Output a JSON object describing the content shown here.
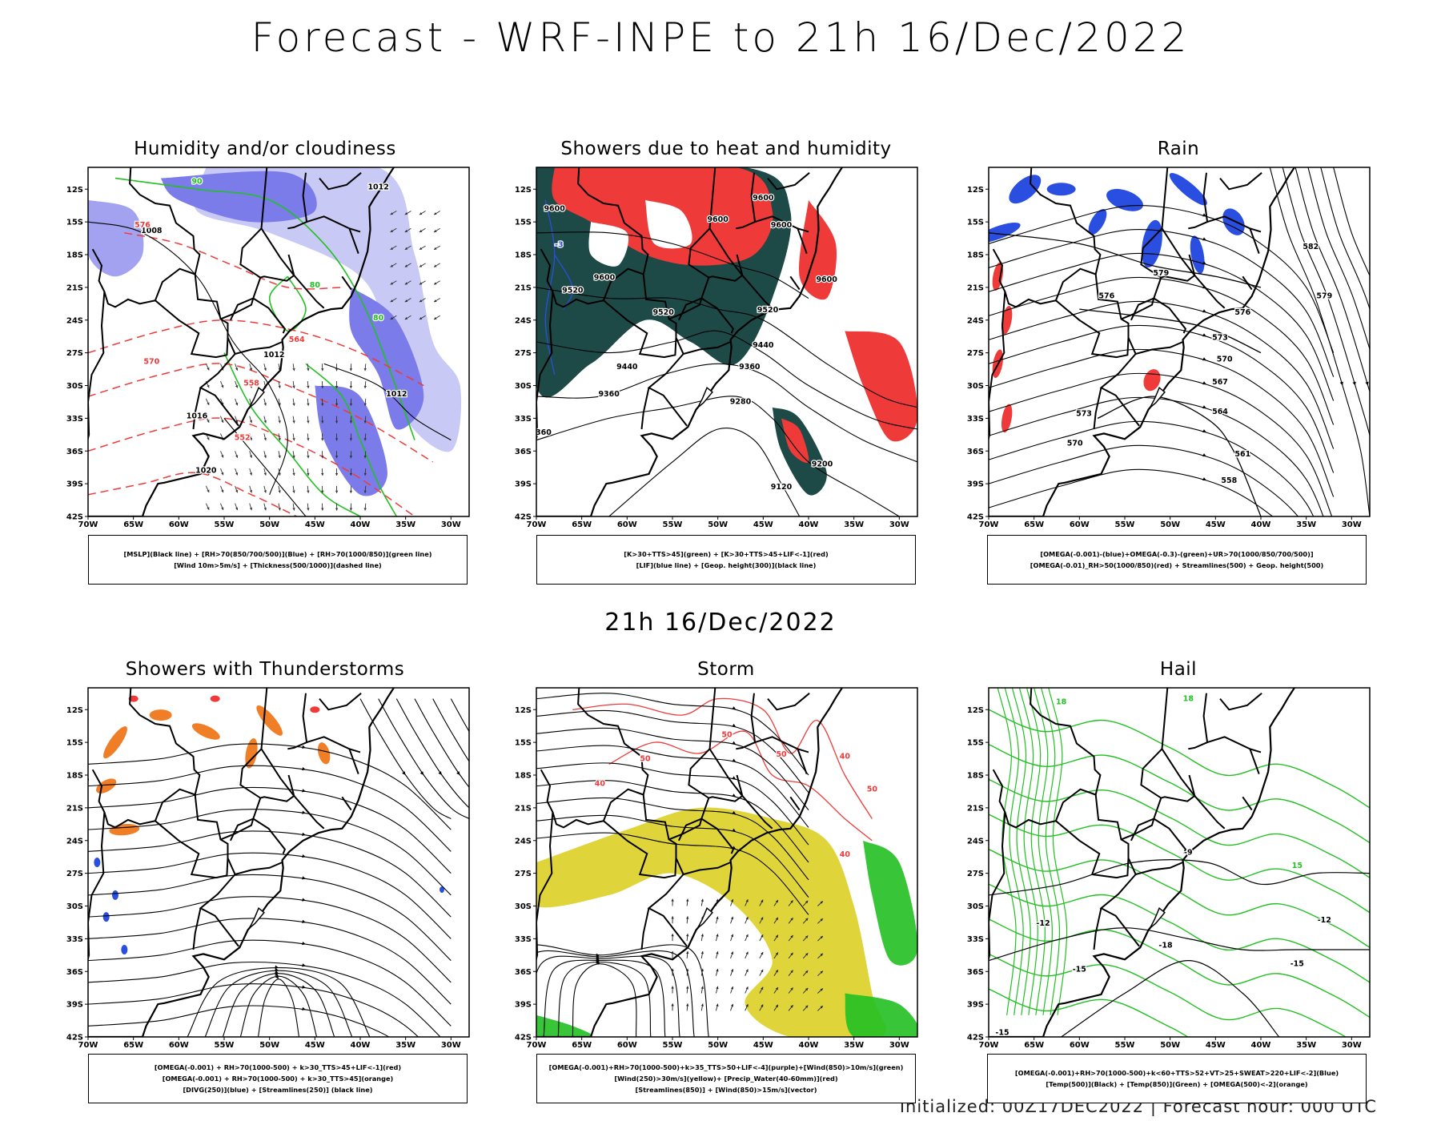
{
  "header": {
    "title": "Forecast - WRF-INPE to 21h 16/Dec/2022",
    "mid_title": "21h 16/Dec/2022"
  },
  "axes": {
    "lat_labels": [
      "12S",
      "15S",
      "18S",
      "21S",
      "24S",
      "27S",
      "30S",
      "33S",
      "36S",
      "39S",
      "42S"
    ],
    "lon_labels": [
      "70W",
      "65W",
      "60W",
      "55W",
      "50W",
      "45W",
      "40W",
      "35W",
      "30W"
    ]
  },
  "panels": [
    {
      "id": "humidity",
      "title": "Humidity and/or cloudiness",
      "legend": [
        "[MSLP](Black line) + [RH>70(850/700/500)](Blue) + [RH>70(1000/850)](green line)",
        "[Wind 10m>5m/s] + [Thickness(500/1000)](dashed line)"
      ],
      "labels": [
        "1008",
        "1012",
        "1016",
        "1020",
        "576",
        "570",
        "564",
        "558",
        "552",
        "90",
        "80"
      ]
    },
    {
      "id": "showers-heat",
      "title": "Showers due to heat and humidity",
      "legend": [
        "[K>30+TTS>45](green) + [K>30+TTS>45+LIF<-1](red)",
        "[LIF](blue line) + [Geop. height(300)](black line)"
      ],
      "labels": [
        "9600",
        "9520",
        "9440",
        "9360",
        "9280",
        "9200",
        "9120",
        "-3"
      ]
    },
    {
      "id": "rain",
      "title": "Rain",
      "legend": [
        "[OMEGA(-0.001)-(blue)+OMEGA(-0.3)-(green)+UR>70(1000/850/700/500)]",
        "[OMEGA(-0.01)_RH>50(1000/850)(red) + Streamlines(500) + Geop. height(500)"
      ],
      "labels": [
        "582",
        "579",
        "576",
        "573",
        "570",
        "567",
        "564",
        "561",
        "558"
      ]
    },
    {
      "id": "thunderstorms",
      "title": "Showers with Thunderstorms",
      "legend": [
        "[OMEGA(-0.001) + RH>70(1000-500) + k>30_TTS>45+LIF<-1](red)",
        "[OMEGA(-0.001) + RH>70(1000-500) + k>30_TTS>45](orange)",
        "[DIVG(250)](blue) + [Streamlines(250)] (black line)"
      ],
      "labels": []
    },
    {
      "id": "storm",
      "title": "Storm",
      "legend": [
        "[OMEGA(-0.001)+RH>70(1000-500)+k>35_TTS>50+LIF<-4](purple)+[Wind(850)>10m/s](green)",
        "[Wind(250)>30m/s](yellow)+ [Precip_Water(40-60mm)](red)",
        "[Streamlines(850)] + [Wind(850)>15m/s](vector)"
      ],
      "labels": [
        "50",
        "40"
      ]
    },
    {
      "id": "hail",
      "title": "Hail",
      "legend": [
        "[OMEGA(-0.001)+RH>70(1000-500)+k<60+TTS>52+VT>25+SWEAT>220+LIF<-2](Blue)",
        "[Temp(500)](Black) + [Temp(850)](Green) + [OMEGA(500)<-2](orange)"
      ],
      "labels": [
        "-9",
        "-12",
        "-15",
        "-18",
        "15",
        "18"
      ]
    }
  ],
  "footer": "Initialized: 00Z17DEC2022 | Forecast hour: 000 UTC",
  "colors": {
    "rh_blue": "#7b7bea",
    "rh_light": "#c9c9f5",
    "green": "#22c022",
    "red": "#ef3a3a",
    "dark_teal": "#1d4a47",
    "yellow": "#dfd53a",
    "orange": "#f07e26",
    "blue": "#2a4fe0"
  }
}
